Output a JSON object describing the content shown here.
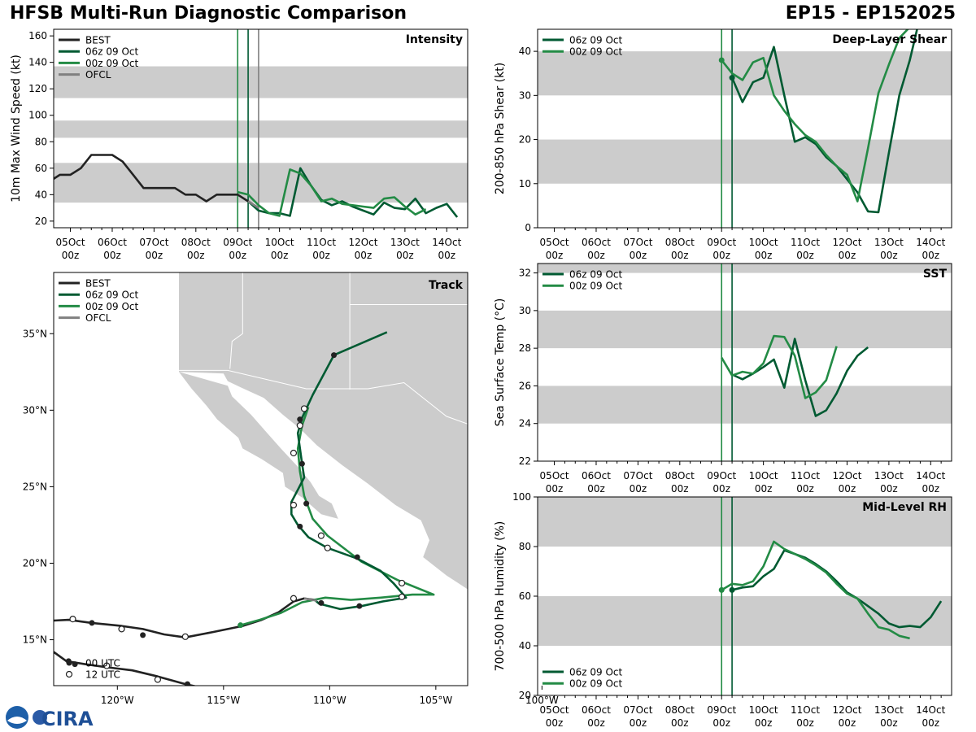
{
  "header": {
    "title": "HFSB Multi-Run Diagnostic Comparison",
    "storm": "EP15 - EP152025"
  },
  "colors": {
    "best": "#222222",
    "run06": "#005a32",
    "run00": "#238b45",
    "ofcl": "#808080",
    "band": "#cccccc",
    "land": "#cccccc"
  },
  "time_ticks": [
    {
      "day": "05Oct",
      "hour": "00z"
    },
    {
      "day": "06Oct",
      "hour": "00z"
    },
    {
      "day": "07Oct",
      "hour": "00z"
    },
    {
      "day": "08Oct",
      "hour": "00z"
    },
    {
      "day": "09Oct",
      "hour": "00z"
    },
    {
      "day": "10Oct",
      "hour": "00z"
    },
    {
      "day": "11Oct",
      "hour": "00z"
    },
    {
      "day": "12Oct",
      "hour": "00z"
    },
    {
      "day": "13Oct",
      "hour": "00z"
    },
    {
      "day": "14Oct",
      "hour": "00z"
    }
  ],
  "logo_text": "CIRA",
  "chart_data": [
    {
      "id": "intensity",
      "type": "line",
      "title": "Intensity",
      "ylabel": "10m Max Wind Speed (kt)",
      "xlim_days": [
        4.6,
        14.5
      ],
      "ylim": [
        15,
        165
      ],
      "yticks": [
        20,
        40,
        60,
        80,
        100,
        120,
        140,
        160
      ],
      "bands": [
        [
          34,
          64
        ],
        [
          83,
          96
        ],
        [
          113,
          137
        ]
      ],
      "vlines": [
        {
          "x": 9.0,
          "color": "run00"
        },
        {
          "x": 9.25,
          "color": "run06"
        },
        {
          "x": 9.5,
          "color": "ofcl"
        }
      ],
      "legend": [
        "BEST",
        "06z 09 Oct",
        "00z 09 Oct",
        "OFCL"
      ],
      "series": [
        {
          "name": "BEST",
          "color": "best",
          "x": [
            4.5,
            4.75,
            5.0,
            5.25,
            5.5,
            5.75,
            6.0,
            6.25,
            6.5,
            6.75,
            7.0,
            7.25,
            7.5,
            7.75,
            8.0,
            8.25,
            8.5,
            8.75,
            9.0,
            9.25,
            9.5
          ],
          "y": [
            50,
            55,
            55,
            60,
            70,
            70,
            70,
            65,
            55,
            45,
            45,
            45,
            45,
            40,
            40,
            35,
            40,
            40,
            40,
            35,
            30
          ]
        },
        {
          "name": "06z 09 Oct",
          "color": "run06",
          "x": [
            9.25,
            9.5,
            9.75,
            10.0,
            10.25,
            10.5,
            10.75,
            11.0,
            11.25,
            11.5,
            11.75,
            12.0,
            12.25,
            12.5,
            12.75,
            13.0,
            13.25,
            13.5,
            13.75,
            14.0,
            14.25
          ],
          "y": [
            35,
            28,
            26,
            26,
            24,
            60,
            47,
            36,
            32,
            35,
            31,
            28,
            25,
            34,
            30,
            29,
            37,
            26,
            30,
            33,
            23
          ]
        },
        {
          "name": "00z 09 Oct",
          "color": "run00",
          "x": [
            9.0,
            9.25,
            9.5,
            9.75,
            10.0,
            10.25,
            10.5,
            10.75,
            11.0,
            11.25,
            11.5,
            11.75,
            12.0,
            12.25,
            12.5,
            12.75,
            13.0,
            13.25,
            13.5
          ],
          "y": [
            42,
            40,
            32,
            26,
            24,
            59,
            56,
            47,
            35,
            37,
            33,
            32,
            31,
            30,
            37,
            38,
            31,
            25,
            29
          ]
        },
        {
          "name": "OFCL",
          "color": "ofcl",
          "x": [
            9.25,
            9.5
          ],
          "y": [
            35,
            30
          ]
        }
      ]
    },
    {
      "id": "shear",
      "type": "line",
      "title": "Deep-Layer Shear",
      "ylabel": "200-850 hPa Shear (kt)",
      "xlim_days": [
        4.6,
        14.5
      ],
      "ylim": [
        0,
        45
      ],
      "yticks": [
        0,
        10,
        20,
        30,
        40
      ],
      "bands": [
        [
          10,
          20
        ],
        [
          30,
          40
        ]
      ],
      "vlines": [
        {
          "x": 9.0,
          "color": "run00"
        },
        {
          "x": 9.25,
          "color": "run06"
        }
      ],
      "legend": [
        "06z 09 Oct",
        "00z 09 Oct"
      ],
      "series": [
        {
          "name": "06z 09 Oct",
          "color": "run06",
          "x": [
            9.25,
            9.5,
            9.75,
            10.0,
            10.25,
            10.5,
            10.75,
            11.0,
            11.25,
            11.5,
            11.75,
            12.0,
            12.25,
            12.5,
            12.75,
            13.0,
            13.25,
            13.5,
            13.75
          ],
          "y": [
            34,
            28.5,
            33,
            34,
            41,
            30,
            19.5,
            20.5,
            19,
            16,
            14,
            11,
            8,
            3.7,
            3.5,
            17,
            30,
            38,
            48
          ]
        },
        {
          "name": "00z 09 Oct",
          "color": "run00",
          "x": [
            9.0,
            9.25,
            9.5,
            9.75,
            10.0,
            10.25,
            10.5,
            10.75,
            11.0,
            11.25,
            11.5,
            11.75,
            12.0,
            12.25,
            12.5,
            12.75,
            13.0,
            13.25,
            13.5
          ],
          "y": [
            38,
            35,
            33.5,
            37.5,
            38.5,
            30,
            26.5,
            23.5,
            21,
            19.5,
            16.5,
            14,
            12,
            6,
            18,
            30.5,
            37,
            43,
            45.5
          ]
        }
      ],
      "markers": [
        {
          "x": 9.0,
          "y": 38,
          "color": "run00"
        },
        {
          "x": 9.25,
          "y": 34,
          "color": "run06"
        }
      ]
    },
    {
      "id": "sst",
      "type": "line",
      "title": "SST",
      "ylabel": "Sea Surface Temp (°C)",
      "xlim_days": [
        4.6,
        14.5
      ],
      "ylim": [
        22,
        32.5
      ],
      "yticks": [
        22,
        24,
        26,
        28,
        30,
        32
      ],
      "bands": [
        [
          24,
          26
        ],
        [
          28,
          30
        ],
        [
          32,
          32.5
        ]
      ],
      "vlines": [
        {
          "x": 9.0,
          "color": "run00"
        },
        {
          "x": 9.25,
          "color": "run06"
        }
      ],
      "legend": [
        "06z 09 Oct",
        "00z 09 Oct"
      ],
      "series": [
        {
          "name": "06z 09 Oct",
          "color": "run06",
          "x": [
            9.25,
            9.5,
            9.75,
            10.0,
            10.25,
            10.5,
            10.75,
            11.0,
            11.25,
            11.5,
            11.75,
            12.0,
            12.25,
            12.5
          ],
          "y": [
            26.6,
            26.35,
            26.65,
            27.0,
            27.4,
            25.9,
            28.5,
            26.3,
            24.4,
            24.7,
            25.6,
            26.8,
            27.6,
            28.05
          ]
        },
        {
          "name": "00z 09 Oct",
          "color": "run00",
          "x": [
            9.0,
            9.25,
            9.5,
            9.75,
            10.0,
            10.25,
            10.5,
            10.75,
            11.0,
            11.25,
            11.5,
            11.75
          ],
          "y": [
            27.5,
            26.55,
            26.75,
            26.65,
            27.2,
            28.65,
            28.6,
            27.6,
            25.35,
            25.65,
            26.3,
            28.1
          ]
        }
      ]
    },
    {
      "id": "rh",
      "type": "line",
      "title": "Mid-Level RH",
      "ylabel": "700-500 hPa Humidity (%)",
      "xlim_days": [
        4.6,
        14.5
      ],
      "ylim": [
        20,
        100
      ],
      "yticks": [
        20,
        40,
        60,
        80,
        100
      ],
      "bands": [
        [
          40,
          60
        ],
        [
          80,
          100
        ]
      ],
      "vlines": [
        {
          "x": 9.0,
          "color": "run00"
        },
        {
          "x": 9.25,
          "color": "run06"
        }
      ],
      "legend": [
        "06z 09 Oct",
        "00z 09 Oct"
      ],
      "series": [
        {
          "name": "06z 09 Oct",
          "color": "run06",
          "x": [
            9.25,
            9.5,
            9.75,
            10.0,
            10.25,
            10.5,
            10.75,
            11.0,
            11.25,
            11.5,
            11.75,
            12.0,
            12.25,
            12.5,
            12.75,
            13.0,
            13.25,
            13.5,
            13.75,
            14.0,
            14.25
          ],
          "y": [
            62.5,
            63.5,
            64,
            68,
            71,
            78.5,
            77,
            75.5,
            73,
            70,
            66,
            61.5,
            59,
            56,
            53,
            49,
            47.5,
            48,
            47.5,
            51.5,
            58
          ]
        },
        {
          "name": "00z 09 Oct",
          "color": "run00",
          "x": [
            9.0,
            9.25,
            9.5,
            9.75,
            10.0,
            10.25,
            10.5,
            10.75,
            11.0,
            11.25,
            11.5,
            11.75,
            12.0,
            12.25,
            12.5,
            12.75,
            13.0,
            13.25,
            13.5
          ],
          "y": [
            62.5,
            65,
            64.5,
            66,
            72,
            82,
            79,
            77,
            75,
            72.5,
            69.5,
            65,
            61,
            59,
            53,
            47.5,
            46.5,
            44,
            43
          ]
        }
      ],
      "markers": [
        {
          "x": 9.0,
          "y": 62.5,
          "color": "run00"
        },
        {
          "x": 9.25,
          "y": 62.5,
          "color": "run06"
        }
      ]
    },
    {
      "id": "track",
      "type": "scatter",
      "title": "Track",
      "lon_range": [
        -123,
        -103.5
      ],
      "lat_range": [
        12,
        39
      ],
      "lon_ticks": [
        {
          "v": -120,
          "label": "120°W"
        },
        {
          "v": -115,
          "label": "115°W"
        },
        {
          "v": -110,
          "label": "110°W"
        },
        {
          "v": -105,
          "label": "105°W"
        },
        {
          "v": -100,
          "label": "100°W"
        }
      ],
      "lat_ticks": [
        {
          "v": 15,
          "label": "15°N"
        },
        {
          "v": 20,
          "label": "20°N"
        },
        {
          "v": 25,
          "label": "25°N"
        },
        {
          "v": 30,
          "label": "30°N"
        },
        {
          "v": 35,
          "label": "35°N"
        }
      ],
      "legend": [
        "BEST",
        "06z 09 Oct",
        "00z 09 Oct",
        "OFCL"
      ],
      "marker_legend": [
        "00 UTC",
        "12 UTC"
      ],
      "best_track": [
        [
          -123,
          16.25
        ],
        [
          -122.3,
          16.3
        ],
        [
          -121.2,
          16.1
        ],
        [
          -119.8,
          15.9
        ],
        [
          -118.8,
          15.7
        ],
        [
          -117.8,
          15.35
        ],
        [
          -116.8,
          15.15
        ],
        [
          -115.5,
          15.5
        ],
        [
          -114.1,
          15.9
        ],
        [
          -113.2,
          16.3
        ],
        [
          -112.4,
          16.8
        ],
        [
          -111.7,
          17.5
        ],
        [
          -111.2,
          17.7
        ],
        [
          -110.7,
          17.6
        ]
      ],
      "best_track_old": [
        [
          -123,
          14.2
        ],
        [
          -122.4,
          13.6
        ],
        [
          -121.5,
          13.4
        ],
        [
          -120.5,
          13.2
        ],
        [
          -119.3,
          13.0
        ],
        [
          -118.1,
          12.6
        ],
        [
          -116.8,
          12.1
        ],
        [
          -115.8,
          11.8
        ]
      ],
      "run06_track": [
        [
          -110.7,
          17.6
        ],
        [
          -110.5,
          17.35
        ],
        [
          -109.5,
          17.0
        ],
        [
          -108.5,
          17.2
        ],
        [
          -107.5,
          17.5
        ],
        [
          -106.4,
          17.75
        ],
        [
          -107,
          18.7
        ],
        [
          -107.6,
          19.5
        ],
        [
          -108.7,
          20.3
        ],
        [
          -110.1,
          21.0
        ],
        [
          -111.0,
          21.7
        ],
        [
          -111.5,
          22.5
        ],
        [
          -111.8,
          23.2
        ],
        [
          -111.8,
          24.0
        ],
        [
          -111.5,
          24.8
        ],
        [
          -111.2,
          25.6
        ],
        [
          -111.3,
          26.5
        ],
        [
          -111.4,
          27.5
        ],
        [
          -111.5,
          28.5
        ],
        [
          -111.3,
          29.5
        ],
        [
          -110.8,
          31.0
        ],
        [
          -109.8,
          33.6
        ],
        [
          -107.3,
          35.1
        ]
      ],
      "run00_track": [
        [
          -114.2,
          15.95
        ],
        [
          -113.3,
          16.3
        ],
        [
          -112.3,
          16.75
        ],
        [
          -111.3,
          17.45
        ],
        [
          -110.2,
          17.75
        ],
        [
          -109.0,
          17.6
        ],
        [
          -107.6,
          17.75
        ],
        [
          -106.1,
          17.95
        ],
        [
          -105.1,
          17.95
        ],
        [
          -106.8,
          18.9
        ],
        [
          -108.5,
          20.1
        ],
        [
          -110.1,
          21.8
        ],
        [
          -110.8,
          22.9
        ],
        [
          -111.2,
          24.4
        ],
        [
          -111.4,
          26.0
        ],
        [
          -111.5,
          27.5
        ],
        [
          -111.3,
          29.0
        ],
        [
          -111.0,
          30.2
        ]
      ],
      "ofcl_track": [
        [
          -111.2,
          17.7
        ],
        [
          -110.6,
          17.55
        ]
      ],
      "markers_00": [
        [
          -122.3,
          13.6
        ],
        [
          -122.0,
          13.4
        ],
        [
          -121.2,
          16.1
        ],
        [
          -118.8,
          15.3
        ],
        [
          -116.7,
          12.1
        ],
        [
          -110.4,
          17.4
        ],
        [
          -108.6,
          17.2
        ],
        [
          -108.7,
          20.4
        ],
        [
          -111.4,
          22.4
        ],
        [
          -111.1,
          23.9
        ],
        [
          -111.3,
          26.5
        ],
        [
          -111.4,
          29.4
        ],
        [
          -109.8,
          33.6
        ]
      ],
      "markers_12": [
        [
          -122.1,
          16.35
        ],
        [
          -120.5,
          13.3
        ],
        [
          -119.8,
          15.7
        ],
        [
          -118.1,
          12.4
        ],
        [
          -116.8,
          15.2
        ],
        [
          -111.7,
          17.7
        ],
        [
          -110.1,
          21.0
        ],
        [
          -110.4,
          21.8
        ],
        [
          -106.6,
          17.8
        ],
        [
          -106.6,
          18.7
        ],
        [
          -111.7,
          23.8
        ],
        [
          -111.7,
          27.2
        ],
        [
          -111.4,
          29.0
        ],
        [
          -111.2,
          30.1
        ]
      ],
      "marker_green": [
        -114.2,
        15.95
      ]
    }
  ]
}
